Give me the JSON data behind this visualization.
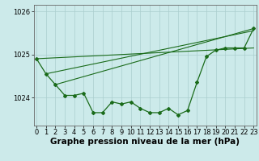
{
  "x": [
    0,
    1,
    2,
    3,
    4,
    5,
    6,
    7,
    8,
    9,
    10,
    11,
    12,
    13,
    14,
    15,
    16,
    17,
    18,
    19,
    20,
    21,
    22,
    23
  ],
  "pressure": [
    1024.9,
    1024.55,
    1024.3,
    1024.05,
    1024.05,
    1024.1,
    1023.65,
    1023.65,
    1023.9,
    1023.85,
    1023.9,
    1023.75,
    1023.65,
    1023.65,
    1023.75,
    1023.6,
    1023.7,
    1024.35,
    1024.95,
    1025.1,
    1025.15,
    1025.15,
    1025.15,
    1025.6
  ],
  "trend_lines": [
    {
      "x0": 0,
      "y0": 1024.9,
      "x1": 23,
      "y1": 1025.15
    },
    {
      "x0": 1,
      "y0": 1024.55,
      "x1": 23,
      "y1": 1025.55
    },
    {
      "x0": 2,
      "y0": 1024.3,
      "x1": 23,
      "y1": 1025.6
    }
  ],
  "ylim_min": 1023.35,
  "ylim_max": 1026.15,
  "yticks": [
    1024,
    1025,
    1026
  ],
  "ytick_labels": [
    "1024",
    "1025",
    "1026"
  ],
  "xlim_min": -0.3,
  "xlim_max": 23.3,
  "xlabel": "Graphe pression niveau de la mer (hPa)",
  "bg_color": "#cceaea",
  "grid_color": "#aacece",
  "line_color": "#1a6b1a",
  "tick_fontsize": 6.0,
  "label_fontsize": 7.5
}
